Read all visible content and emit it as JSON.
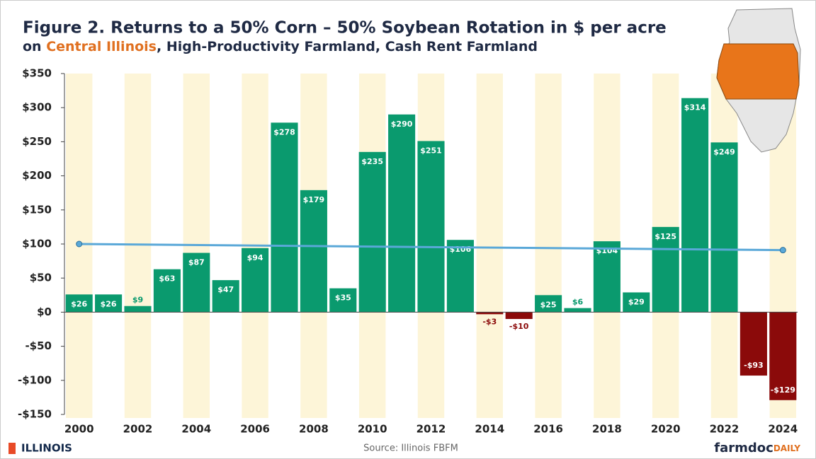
{
  "chart_data": {
    "type": "bar",
    "title": "Figure 2. Returns to a 50% Corn – 50% Soybean Rotation in $ per acre",
    "subtitle": [
      "on ",
      "Central Illinois",
      ", High-Productivity Farmland, Cash Rent Farmland"
    ],
    "categories": [
      "2000",
      null,
      "2002",
      null,
      "2004",
      null,
      "2006",
      null,
      "2008",
      null,
      "2010",
      null,
      "2012",
      null,
      "2014",
      null,
      "2016",
      null,
      "2018",
      null,
      "2020",
      null,
      "2022",
      null,
      "2024"
    ],
    "values": [
      26,
      26,
      9,
      63,
      87,
      47,
      94,
      278,
      179,
      35,
      235,
      290,
      251,
      106,
      -3,
      -10,
      25,
      6,
      104,
      29,
      125,
      314,
      249,
      -93,
      -129
    ],
    "value_labels": [
      "$26",
      "$26",
      "$9",
      "$63",
      "$87",
      "$47",
      "$94",
      "$278",
      "$179",
      "$35",
      "$235",
      "$290",
      "$251",
      "$106",
      "-$3",
      "-$10",
      "$25",
      "$6",
      "$104",
      "$29",
      "$125",
      "$314",
      "$249",
      "-$93",
      "-$129"
    ],
    "positive_color": "#0a9a6e",
    "negative_color": "#8b0a0a",
    "ylim": [
      -150,
      350
    ],
    "yticks": [
      {
        "value": -150,
        "label": "-$150"
      },
      {
        "value": -100,
        "label": "-$100"
      },
      {
        "value": -50,
        "label": "-$50"
      },
      {
        "value": 0,
        "label": "$0"
      },
      {
        "value": 50,
        "label": "$50"
      },
      {
        "value": 100,
        "label": "$100"
      },
      {
        "value": 150,
        "label": "$150"
      },
      {
        "value": 200,
        "label": "$200"
      },
      {
        "value": 250,
        "label": "$250"
      },
      {
        "value": 300,
        "label": "$300"
      },
      {
        "value": 350,
        "label": "$350"
      }
    ],
    "trend": {
      "x": [
        2000,
        2024
      ],
      "values": [
        100,
        91
      ],
      "color": "#5aa8d8"
    },
    "source": "Source: Illinois FBFM"
  },
  "footer": {
    "logo_left": "ILLINOIS",
    "logo_right": [
      "farmdoc",
      "DAILY"
    ]
  }
}
